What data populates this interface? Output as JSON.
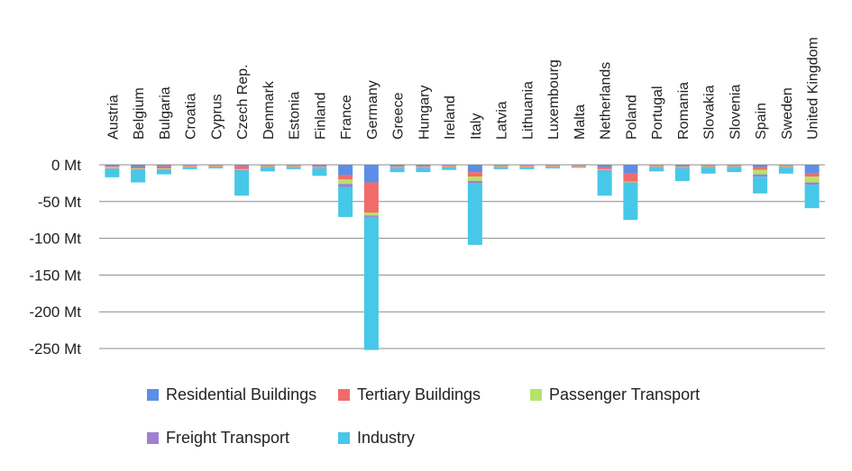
{
  "chart_data": {
    "type": "bar",
    "stacked": true,
    "categories": [
      "Austria",
      "Belgium",
      "Bulgaria",
      "Croatia",
      "Cyprus",
      "Czech Rep.",
      "Denmark",
      "Estonia",
      "Finland",
      "France",
      "Germany",
      "Greece",
      "Hungary",
      "Ireland",
      "Italy",
      "Latvia",
      "Lithuania",
      "Luxembourg",
      "Malta",
      "Netherlands",
      "Poland",
      "Portugal",
      "Romania",
      "Slovakia",
      "Slovenia",
      "Spain",
      "Sweden",
      "United Kingdom"
    ],
    "series": [
      {
        "name": "Residential Buildings",
        "color": "#5b8ee6",
        "values": [
          -2,
          -3,
          -2,
          -1,
          -1,
          -2,
          -1,
          -1,
          -2,
          -14,
          -24,
          -2,
          -2,
          -1,
          -10,
          -1,
          -1,
          -1,
          -1,
          -3,
          -11,
          -1,
          -2,
          -1,
          -1,
          -3,
          -1,
          -11
        ]
      },
      {
        "name": "Tertiary Buildings",
        "color": "#f26b6b",
        "values": [
          -1,
          -2,
          -3,
          -1,
          -1,
          -4,
          -1,
          -1,
          -1,
          -6,
          -41,
          -1,
          -1,
          -1,
          -6,
          -1,
          -1,
          -1,
          -1,
          -3,
          -12,
          -1,
          -1,
          -1,
          -1,
          -4,
          -1,
          -5
        ]
      },
      {
        "name": "Passenger Transport",
        "color": "#b4e36a",
        "values": [
          -2,
          -1,
          -1,
          -1,
          -1,
          -1,
          -1,
          -1,
          -1,
          -6,
          -4,
          -1,
          -1,
          -1,
          -6,
          -1,
          -1,
          -1,
          -1,
          -1,
          -1,
          -1,
          -1,
          -1,
          -1,
          -6,
          -1,
          -8
        ]
      },
      {
        "name": "Freight Transport",
        "color": "#a07fd0",
        "values": [
          -1,
          -1,
          -1,
          -1,
          -1,
          -1,
          -1,
          -1,
          -1,
          -4,
          -2,
          -1,
          -1,
          -1,
          -3,
          -1,
          -1,
          -1,
          -1,
          -1,
          -1,
          -1,
          -1,
          -1,
          -1,
          -3,
          -1,
          -3
        ]
      },
      {
        "name": "Industry",
        "color": "#46c8e8",
        "values": [
          -11,
          -17,
          -6,
          -2,
          -1,
          -34,
          -5,
          -2,
          -10,
          -41,
          -181,
          -5,
          -5,
          -3,
          -84,
          -2,
          -2,
          -1,
          0,
          -34,
          -50,
          -5,
          -17,
          -8,
          -6,
          -23,
          -8,
          -32
        ]
      }
    ],
    "yticks": [
      0,
      -50,
      -100,
      -150,
      -200,
      -250
    ],
    "ytick_labels": [
      "0 Mt",
      "-50 Mt",
      "-100 Mt",
      "-150 Mt",
      "-200 Mt",
      "-250 Mt"
    ],
    "ylim": [
      -250,
      0
    ],
    "grid": true,
    "legend_position": "bottom"
  }
}
